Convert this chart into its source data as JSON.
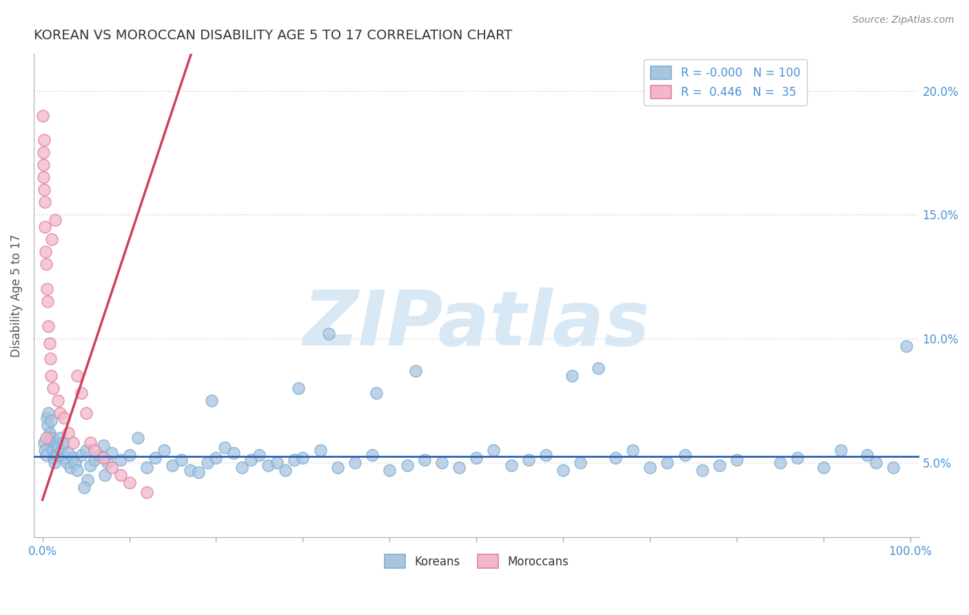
{
  "title": "KOREAN VS MOROCCAN DISABILITY AGE 5 TO 17 CORRELATION CHART",
  "source_text": "Source: ZipAtlas.com",
  "ylabel": "Disability Age 5 to 17",
  "xlim": [
    -1.0,
    101.0
  ],
  "ylim": [
    2.0,
    21.5
  ],
  "xtick_positions": [
    0.0,
    10.0,
    20.0,
    30.0,
    40.0,
    50.0,
    60.0,
    70.0,
    80.0,
    90.0,
    100.0
  ],
  "ytick_positions": [
    5.0,
    10.0,
    15.0,
    20.0
  ],
  "yticklabels": [
    "5.0%",
    "10.0%",
    "15.0%",
    "20.0%"
  ],
  "korean_color": "#aac4df",
  "moroccan_color": "#f2b8ca",
  "korean_edge": "#7aafd4",
  "moroccan_edge": "#e080a0",
  "korean_R": -0.0,
  "korean_N": 100,
  "moroccan_R": 0.446,
  "moroccan_N": 35,
  "trend_blue": "#3060b0",
  "trend_pink": "#d04060",
  "watermark_color": "#d8e8f5",
  "watermark_text": "ZIPatlas",
  "grid_color": "#cccccc",
  "title_color": "#333333",
  "axis_label_color": "#4a90d9",
  "legend_label_color": "#4a90d9",
  "legend_text_color": "#333333",
  "korean_x": [
    0.2,
    0.3,
    0.4,
    0.5,
    0.6,
    0.7,
    0.8,
    0.9,
    1.0,
    1.1,
    1.2,
    1.3,
    1.4,
    1.5,
    1.6,
    1.7,
    1.8,
    1.9,
    2.0,
    2.2,
    2.4,
    2.6,
    2.8,
    3.0,
    3.2,
    3.5,
    3.8,
    4.0,
    4.5,
    5.0,
    5.5,
    6.0,
    6.5,
    7.0,
    7.5,
    8.0,
    9.0,
    10.0,
    11.0,
    12.0,
    13.0,
    14.0,
    15.0,
    16.0,
    17.0,
    18.0,
    19.0,
    20.0,
    21.0,
    22.0,
    23.0,
    24.0,
    25.0,
    26.0,
    27.0,
    28.0,
    29.0,
    30.0,
    32.0,
    34.0,
    36.0,
    38.0,
    40.0,
    42.0,
    44.0,
    46.0,
    48.0,
    50.0,
    52.0,
    54.0,
    56.0,
    58.0,
    60.0,
    62.0,
    64.0,
    66.0,
    68.0,
    70.0,
    72.0,
    74.0,
    76.0,
    78.0,
    80.0,
    85.0,
    87.0,
    90.0,
    92.0,
    95.0,
    96.0,
    98.0,
    99.5,
    43.0,
    33.0,
    19.5,
    29.5,
    61.0,
    5.2,
    4.8,
    7.2,
    38.5
  ],
  "korean_y": [
    5.8,
    5.5,
    5.3,
    6.8,
    6.5,
    7.0,
    6.2,
    5.9,
    6.7,
    6.0,
    5.5,
    5.2,
    5.0,
    5.8,
    5.4,
    5.7,
    5.3,
    5.6,
    6.0,
    5.5,
    5.8,
    5.2,
    5.0,
    5.4,
    4.8,
    5.2,
    5.0,
    4.7,
    5.3,
    5.5,
    4.9,
    5.1,
    5.3,
    5.7,
    5.0,
    5.4,
    5.1,
    5.3,
    6.0,
    4.8,
    5.2,
    5.5,
    4.9,
    5.1,
    4.7,
    4.6,
    5.0,
    5.2,
    5.6,
    5.4,
    4.8,
    5.1,
    5.3,
    4.9,
    5.0,
    4.7,
    5.1,
    5.2,
    5.5,
    4.8,
    5.0,
    5.3,
    4.7,
    4.9,
    5.1,
    5.0,
    4.8,
    5.2,
    5.5,
    4.9,
    5.1,
    5.3,
    4.7,
    5.0,
    8.8,
    5.2,
    5.5,
    4.8,
    5.0,
    5.3,
    4.7,
    4.9,
    5.1,
    5.0,
    5.2,
    4.8,
    5.5,
    5.3,
    5.0,
    4.8,
    9.7,
    8.7,
    10.2,
    7.5,
    8.0,
    8.5,
    4.3,
    4.0,
    4.5,
    7.8
  ],
  "moroccan_x": [
    0.05,
    0.1,
    0.12,
    0.15,
    0.18,
    0.2,
    0.25,
    0.3,
    0.35,
    0.4,
    0.5,
    0.6,
    0.7,
    0.8,
    0.9,
    1.0,
    1.2,
    1.5,
    1.8,
    2.0,
    2.5,
    3.0,
    3.5,
    4.0,
    4.5,
    5.0,
    5.5,
    6.0,
    7.0,
    8.0,
    9.0,
    10.0,
    12.0,
    0.45,
    1.1
  ],
  "moroccan_y": [
    19.0,
    17.5,
    16.5,
    17.0,
    16.0,
    18.0,
    15.5,
    14.5,
    13.5,
    13.0,
    12.0,
    11.5,
    10.5,
    9.8,
    9.2,
    8.5,
    8.0,
    14.8,
    7.5,
    7.0,
    6.8,
    6.2,
    5.8,
    8.5,
    7.8,
    7.0,
    5.8,
    5.5,
    5.2,
    4.8,
    4.5,
    4.2,
    3.8,
    6.0,
    14.0
  ],
  "pink_line_x": [
    0.0,
    15.0
  ],
  "pink_line_y_intercept": 3.5,
  "pink_line_slope": 1.05,
  "blue_line_y": 5.25
}
